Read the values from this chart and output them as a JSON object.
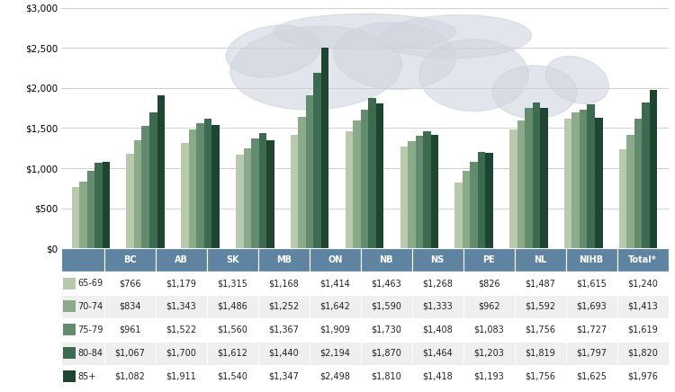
{
  "categories": [
    "BC",
    "AB",
    "SK",
    "MB",
    "ON",
    "NB",
    "NS",
    "PE",
    "NL",
    "NIHB",
    "Total*"
  ],
  "age_bands": [
    "65-69",
    "70-74",
    "75-79",
    "80-84",
    "85+"
  ],
  "values": {
    "65-69": [
      766,
      1179,
      1315,
      1168,
      1414,
      1463,
      1268,
      826,
      1487,
      1615,
      1240
    ],
    "70-74": [
      834,
      1343,
      1486,
      1252,
      1642,
      1590,
      1333,
      962,
      1592,
      1693,
      1413
    ],
    "75-79": [
      961,
      1522,
      1560,
      1367,
      1909,
      1730,
      1408,
      1083,
      1756,
      1727,
      1619
    ],
    "80-84": [
      1067,
      1700,
      1612,
      1440,
      2194,
      1870,
      1464,
      1203,
      1819,
      1797,
      1820
    ],
    "85+": [
      1082,
      1911,
      1540,
      1347,
      2498,
      1810,
      1418,
      1193,
      1756,
      1625,
      1976
    ]
  },
  "colors": [
    "#b8caad",
    "#8aaa8a",
    "#638c6e",
    "#3d6b52",
    "#1e4530"
  ],
  "table_header_bg": "#5f84a2",
  "table_header_text": "#ffffff",
  "table_row_bg1": "#ffffff",
  "table_row_bg2": "#efefef",
  "table_text": "#222222",
  "ylim": [
    0,
    3000
  ],
  "yticks": [
    0,
    500,
    1000,
    1500,
    2000,
    2500,
    3000
  ],
  "bar_width": 0.14,
  "chart_bg": "#ffffff",
  "grid_color": "#d0d0d0",
  "watermark_color": "#d0d5de",
  "watermark_alpha": 0.6
}
